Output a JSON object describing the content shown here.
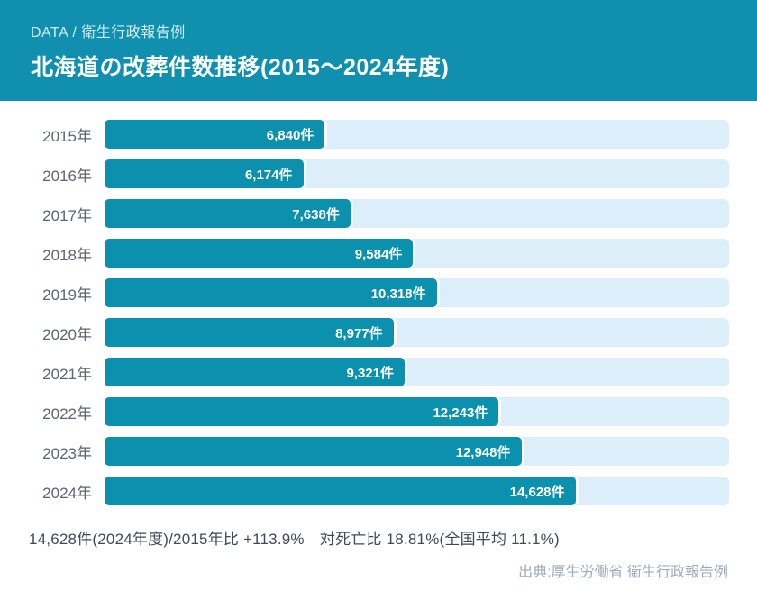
{
  "header": {
    "kicker": "DATA / 衛生行政報告例",
    "title": "北海道の改葬件数推移(2015〜2024年度)"
  },
  "chart_data": {
    "type": "bar",
    "orientation": "horizontal",
    "title": "北海道の改葬件数推移(2015〜2024年度)",
    "categories": [
      "2015年",
      "2016年",
      "2017年",
      "2018年",
      "2019年",
      "2020年",
      "2021年",
      "2022年",
      "2023年",
      "2024年"
    ],
    "values": [
      6840,
      6174,
      7638,
      9584,
      10318,
      8977,
      9321,
      12243,
      12948,
      14628
    ],
    "value_labels": [
      "6,840件",
      "6,174件",
      "7,638件",
      "9,584件",
      "10,318件",
      "8,977件",
      "9,321件",
      "12,243件",
      "12,948件",
      "14,628件"
    ],
    "xlabel": "",
    "ylabel": "",
    "xlim": [
      0,
      19400
    ],
    "grid": false,
    "legend": false,
    "bar_color": "#0b90ad",
    "track_color": "#dceefa"
  },
  "footer": {
    "summary": "14,628件(2024年度)/2015年比 +113.9%　対死亡比 18.81%(全国平均 11.1%)",
    "source": "出典:厚生労働省 衛生行政報告例"
  }
}
